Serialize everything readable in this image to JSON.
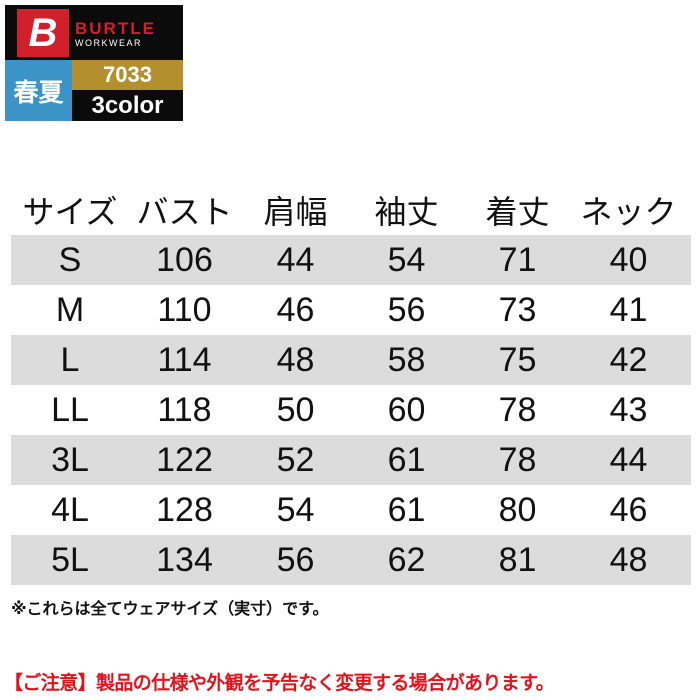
{
  "logo": {
    "brand": "BURTLE",
    "brand_sub": "WORKWEAR",
    "mark": "B",
    "season": "春夏",
    "model": "7033",
    "colors": "3color"
  },
  "table": {
    "headers": [
      "サイズ",
      "バスト",
      "肩幅",
      "袖丈",
      "着丈",
      "ネック"
    ],
    "rows": [
      [
        "S",
        "106",
        "44",
        "54",
        "71",
        "40"
      ],
      [
        "M",
        "110",
        "46",
        "56",
        "73",
        "41"
      ],
      [
        "L",
        "114",
        "48",
        "58",
        "75",
        "42"
      ],
      [
        "LL",
        "118",
        "50",
        "60",
        "78",
        "43"
      ],
      [
        "3L",
        "122",
        "52",
        "61",
        "78",
        "44"
      ],
      [
        "4L",
        "128",
        "54",
        "61",
        "80",
        "46"
      ],
      [
        "5L",
        "134",
        "56",
        "62",
        "81",
        "48"
      ]
    ]
  },
  "note": "※これらは全てウェアサイズ（実寸）です。",
  "caution": "【ご注意】製品の仕様や外観を予告なく変更する場合があります。",
  "colors": {
    "brand_red": "#d21f2b",
    "season_blue": "#3b93c6",
    "model_gold": "#b3902d",
    "row_shade": "#dcdcdc",
    "caution_red": "#e0141e"
  }
}
